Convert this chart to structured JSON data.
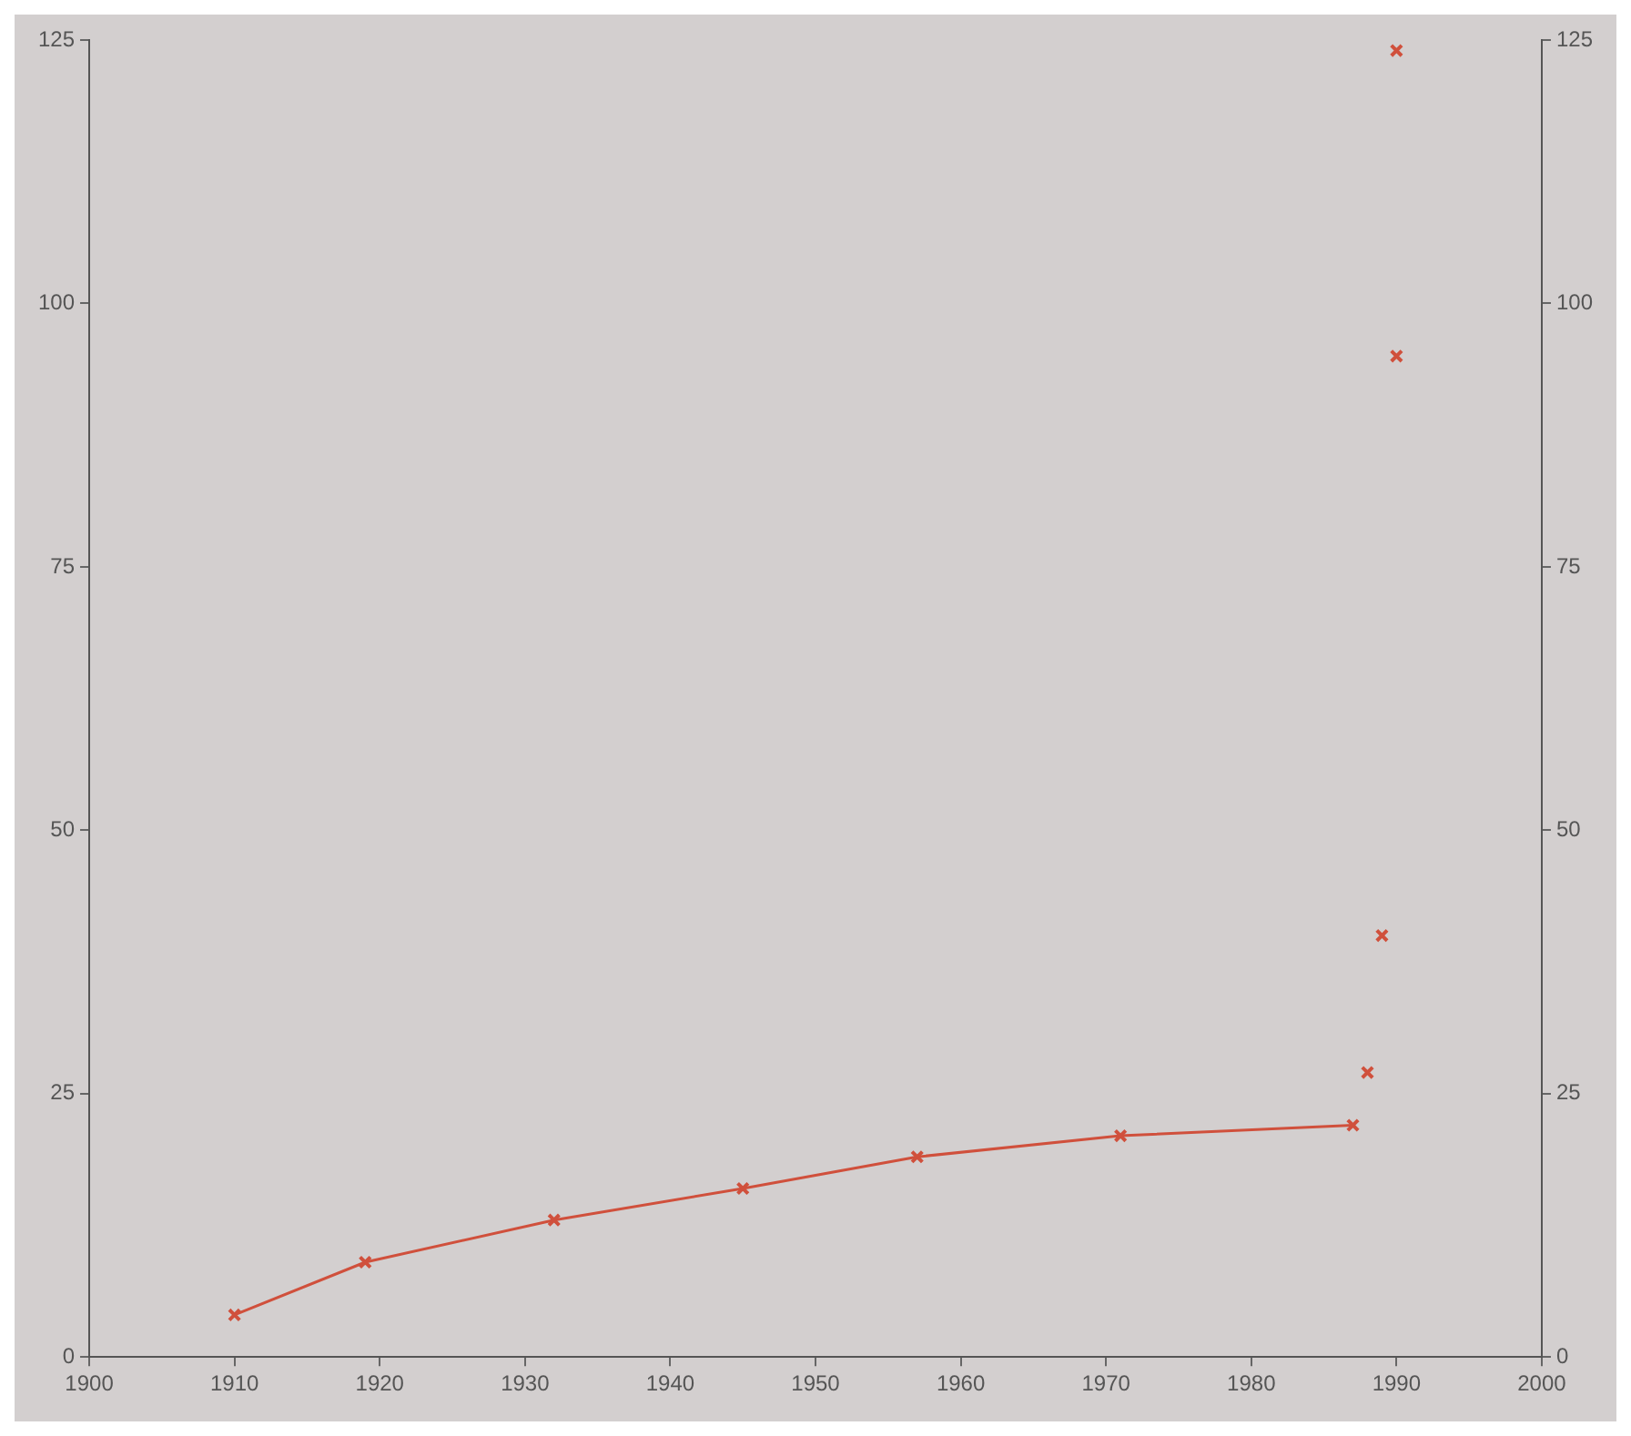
{
  "chart_data": {
    "type": "line",
    "xlim": [
      1900,
      2000
    ],
    "xticks": [
      1900,
      1910,
      1920,
      1930,
      1940,
      1950,
      1960,
      1970,
      1980,
      1990,
      2000
    ],
    "ylim": [
      0,
      125
    ],
    "yticks": [
      0,
      25,
      50,
      75,
      100,
      125
    ],
    "y2lim": [
      0,
      125
    ],
    "y2ticks": [
      0,
      25,
      50,
      75,
      100,
      125
    ],
    "grid": false,
    "legend": false,
    "marker": "cross",
    "line_style": "solid",
    "series": [
      {
        "color": "#d0503c",
        "x": [
          1910,
          1919,
          1932,
          1945,
          1957,
          1971,
          1987
        ],
        "values": [
          4,
          9,
          13,
          16,
          19,
          21,
          22
        ]
      },
      {
        "type": "scatter",
        "color": "#d0503c",
        "x": [
          1988,
          1989,
          1990,
          1990
        ],
        "values": [
          27,
          40,
          95,
          124
        ]
      }
    ]
  }
}
